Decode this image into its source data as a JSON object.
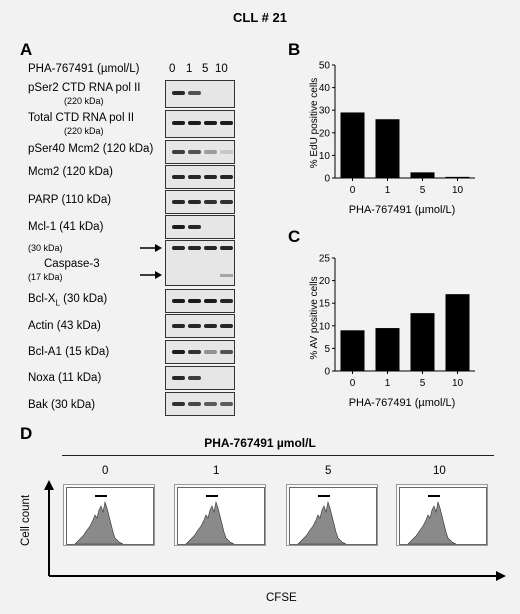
{
  "figure": {
    "title": "CLL # 21"
  },
  "panel_a": {
    "letter": "A",
    "treatment_label": "PHA-767491 (µmol/L)",
    "doses": [
      "0",
      "1",
      "5",
      "10"
    ],
    "rows": [
      {
        "label": "pSer2 CTD RNA pol II",
        "sub": "(220 kDa)"
      },
      {
        "label": "Total CTD RNA pol II",
        "sub": "(220 kDa)"
      },
      {
        "label": "pSer40 Mcm2 (120 kDa)",
        "sub": ""
      },
      {
        "label": "Mcm2 (120 kDa)",
        "sub": ""
      },
      {
        "label": "PARP (110 kDa)",
        "sub": ""
      },
      {
        "label": "Mcl-1 (41 kDa)",
        "sub": ""
      },
      {
        "label": "Caspase-3",
        "sub": ""
      },
      {
        "label": "Bcl-X",
        "sub": "L",
        "suffix": " (30 kDa)"
      },
      {
        "label": "Actin (43 kDa)",
        "sub": ""
      },
      {
        "label": "Bcl-A1 (15 kDa)",
        "sub": ""
      },
      {
        "label": "Noxa (11 kDa)",
        "sub": ""
      },
      {
        "label": "Bak (30 kDa)",
        "sub": ""
      }
    ],
    "caspase_markers": [
      "(30 kDa)",
      "(17 kDa)"
    ]
  },
  "panel_b": {
    "letter": "B",
    "ylabel": "% EdU positive cells",
    "xlabel": "PHA-767491 (µmol/L)",
    "yticks": [
      "0",
      "10",
      "20",
      "30",
      "40",
      "50"
    ]
  },
  "panel_c": {
    "letter": "C",
    "ylabel": "% AV positive cells",
    "xlabel": "PHA-767491 (µmol/L)",
    "yticks": [
      "0",
      "5",
      "10",
      "15",
      "20",
      "25"
    ]
  },
  "panel_d": {
    "letter": "D",
    "header": "PHA-767491 µmol/L",
    "doses": [
      "0",
      "1",
      "5",
      "10"
    ],
    "ylabel": "Cell count",
    "xlabel": "CFSE"
  },
  "chart_data": [
    {
      "type": "bar",
      "categories": [
        "0",
        "1",
        "5",
        "10"
      ],
      "values": [
        29,
        26,
        2.5,
        0.5
      ],
      "ylabel": "% EdU positive cells",
      "xlabel": "PHA-767491 (µmol/L)",
      "ylim": [
        0,
        50
      ],
      "grid": false
    },
    {
      "type": "bar",
      "categories": [
        "0",
        "1",
        "5",
        "10"
      ],
      "values": [
        9,
        9.5,
        12.8,
        17
      ],
      "ylabel": "% AV positive cells",
      "xlabel": "PHA-767491 (µmol/L)",
      "ylim": [
        0,
        25
      ],
      "grid": false
    }
  ],
  "colors": {
    "bar": "#000000",
    "background": "#f2f2f2",
    "blot": "#e6e6e6",
    "histogram_fill": "#8a8a8a"
  }
}
